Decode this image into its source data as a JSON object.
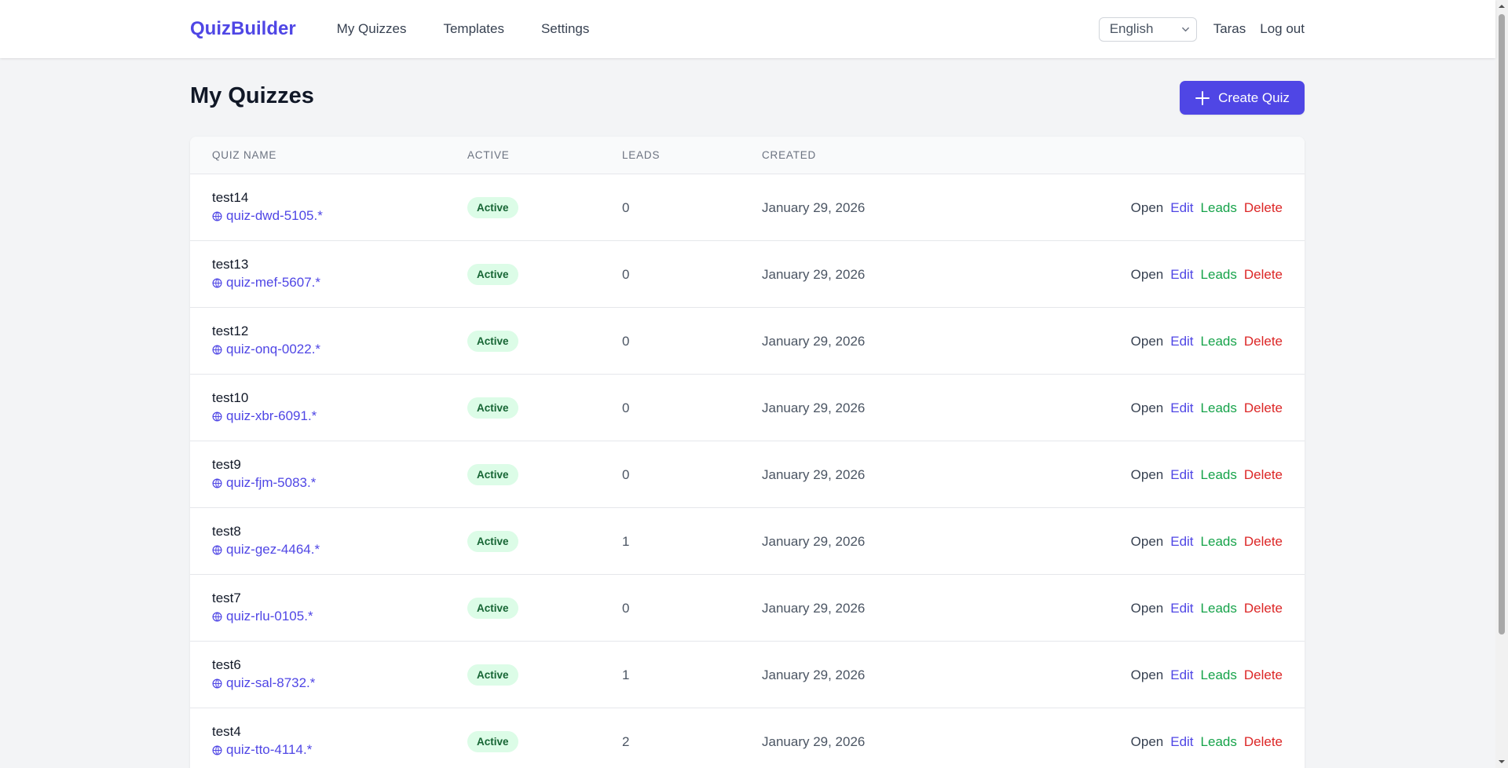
{
  "nav": {
    "brand": "QuizBuilder",
    "links": [
      "My Quizzes",
      "Templates",
      "Settings"
    ],
    "language": "English",
    "user": "Taras",
    "logout": "Log out"
  },
  "header": {
    "title": "My Quizzes",
    "create_label": "Create Quiz"
  },
  "table": {
    "columns": [
      "QUIZ NAME",
      "ACTIVE",
      "LEADS",
      "CREATED"
    ],
    "actions": {
      "open": "Open",
      "edit": "Edit",
      "leads": "Leads",
      "delete": "Delete"
    },
    "rows": [
      {
        "name": "test14",
        "slug": "quiz-dwd-5105.*",
        "status": "Active",
        "leads": "0",
        "created": "January 29, 2026"
      },
      {
        "name": "test13",
        "slug": "quiz-mef-5607.*",
        "status": "Active",
        "leads": "0",
        "created": "January 29, 2026"
      },
      {
        "name": "test12",
        "slug": "quiz-onq-0022.*",
        "status": "Active",
        "leads": "0",
        "created": "January 29, 2026"
      },
      {
        "name": "test10",
        "slug": "quiz-xbr-6091.*",
        "status": "Active",
        "leads": "0",
        "created": "January 29, 2026"
      },
      {
        "name": "test9",
        "slug": "quiz-fjm-5083.*",
        "status": "Active",
        "leads": "0",
        "created": "January 29, 2026"
      },
      {
        "name": "test8",
        "slug": "quiz-gez-4464.*",
        "status": "Active",
        "leads": "1",
        "created": "January 29, 2026"
      },
      {
        "name": "test7",
        "slug": "quiz-rlu-0105.*",
        "status": "Active",
        "leads": "0",
        "created": "January 29, 2026"
      },
      {
        "name": "test6",
        "slug": "quiz-sal-8732.*",
        "status": "Active",
        "leads": "1",
        "created": "January 29, 2026"
      },
      {
        "name": "test4",
        "slug": "quiz-tto-4114.*",
        "status": "Active",
        "leads": "2",
        "created": "January 29, 2026"
      }
    ]
  },
  "colors": {
    "brand": "#4f46e5",
    "active_badge_bg": "#dcfce7",
    "active_badge_text": "#166534",
    "leads_action": "#16a34a",
    "delete_action": "#dc2626"
  }
}
